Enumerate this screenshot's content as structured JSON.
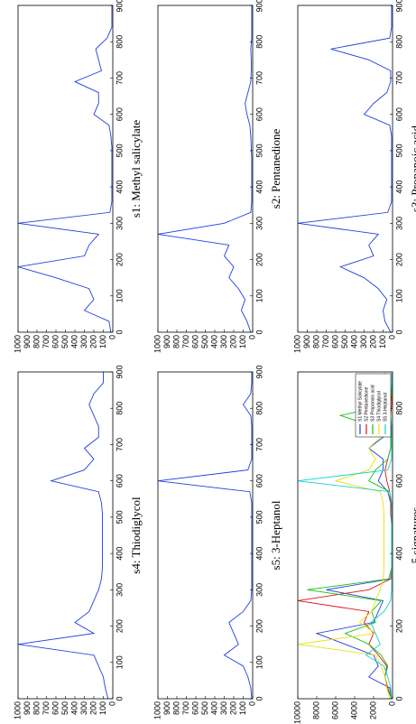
{
  "chart_data": [
    {
      "type": "line",
      "title": "s1: Methyl salicylate",
      "x": [
        0,
        30,
        60,
        90,
        120,
        150,
        180,
        210,
        240,
        270,
        300,
        330,
        360,
        390,
        420,
        450,
        480,
        510,
        540,
        570,
        600,
        630,
        660,
        690,
        720,
        750,
        780,
        810,
        840,
        870,
        900
      ],
      "series": [
        {
          "color": "#1f3fdf",
          "values": [
            20,
            40,
            300,
            200,
            250,
            600,
            1000,
            300,
            250,
            150,
            1000,
            30,
            10,
            10,
            10,
            10,
            10,
            10,
            20,
            40,
            200,
            150,
            150,
            400,
            120,
            150,
            180,
            60,
            10,
            10,
            10
          ]
        }
      ],
      "xlim": [
        0,
        900
      ],
      "xticks": [
        0,
        100,
        200,
        300,
        400,
        500,
        600,
        700,
        800,
        900
      ],
      "ylim": [
        0,
        1000
      ],
      "yticks": [
        0,
        100,
        200,
        300,
        400,
        500,
        600,
        700,
        800,
        900,
        1000
      ]
    },
    {
      "type": "line",
      "title": "s2: Pentanedione",
      "x": [
        0,
        30,
        60,
        90,
        120,
        150,
        180,
        210,
        240,
        270,
        300,
        330,
        360,
        390,
        420,
        450,
        480,
        510,
        540,
        570,
        600,
        630,
        660,
        690,
        720,
        750,
        780,
        810,
        840,
        870,
        900
      ],
      "series": [
        {
          "color": "#1f3fdf",
          "values": [
            20,
            60,
            120,
            80,
            150,
            250,
            200,
            300,
            250,
            1000,
            300,
            20,
            10,
            10,
            10,
            10,
            10,
            15,
            20,
            30,
            60,
            80,
            50,
            20,
            15,
            15,
            20,
            10,
            10,
            10,
            10
          ]
        }
      ],
      "xlim": [
        0,
        900
      ],
      "xticks": [
        0,
        100,
        200,
        300,
        400,
        500,
        600,
        700,
        800,
        900
      ],
      "ylim": [
        0,
        1000
      ],
      "yticks": [
        0,
        100,
        200,
        300,
        400,
        500,
        600,
        700,
        800,
        900,
        1000
      ]
    },
    {
      "type": "line",
      "title": "s3: Propanoic acid",
      "x": [
        0,
        30,
        60,
        90,
        120,
        150,
        180,
        210,
        240,
        270,
        300,
        330,
        360,
        390,
        420,
        450,
        480,
        510,
        540,
        570,
        600,
        630,
        660,
        690,
        720,
        750,
        780,
        810,
        840,
        870,
        900
      ],
      "series": [
        {
          "color": "#1f3fdf",
          "values": [
            20,
            80,
            100,
            60,
            150,
            300,
            550,
            200,
            250,
            150,
            1000,
            50,
            10,
            10,
            10,
            10,
            10,
            10,
            10,
            30,
            300,
            200,
            60,
            20,
            20,
            250,
            650,
            30,
            10,
            10,
            10
          ]
        }
      ],
      "xlim": [
        0,
        900
      ],
      "xticks": [
        0,
        100,
        200,
        300,
        400,
        500,
        600,
        700,
        800,
        900
      ],
      "ylim": [
        0,
        1000
      ],
      "yticks": [
        0,
        100,
        200,
        300,
        400,
        500,
        600,
        700,
        800,
        900,
        1000
      ]
    },
    {
      "type": "line",
      "title": "s4: Thiodiglycol",
      "x": [
        0,
        30,
        60,
        90,
        120,
        150,
        180,
        210,
        240,
        270,
        300,
        330,
        360,
        390,
        420,
        450,
        480,
        510,
        540,
        570,
        600,
        630,
        660,
        690,
        720,
        750,
        780,
        810,
        840,
        870,
        900
      ],
      "series": [
        {
          "color": "#1f3fdf",
          "values": [
            50,
            80,
            100,
            150,
            200,
            1000,
            200,
            400,
            250,
            200,
            150,
            120,
            110,
            110,
            110,
            110,
            110,
            110,
            120,
            150,
            650,
            300,
            200,
            300,
            150,
            150,
            200,
            250,
            200,
            100,
            100
          ]
        }
      ],
      "xlim": [
        0,
        900
      ],
      "xticks": [
        0,
        100,
        200,
        300,
        400,
        500,
        600,
        700,
        800,
        900
      ],
      "ylim": [
        0,
        1000
      ],
      "yticks": [
        0,
        100,
        200,
        300,
        400,
        500,
        600,
        700,
        800,
        900,
        1000
      ]
    },
    {
      "type": "line",
      "title": "s5: 3-Heptanol",
      "x": [
        0,
        30,
        60,
        90,
        120,
        150,
        180,
        210,
        240,
        270,
        300,
        330,
        360,
        390,
        420,
        450,
        480,
        510,
        540,
        570,
        600,
        630,
        660,
        690,
        720,
        750,
        780,
        810,
        840,
        870,
        900
      ],
      "series": [
        {
          "color": "#1f3fdf",
          "values": [
            10,
            20,
            50,
            100,
            300,
            150,
            200,
            250,
            100,
            20,
            10,
            10,
            10,
            10,
            10,
            10,
            10,
            10,
            10,
            30,
            1000,
            50,
            10,
            10,
            10,
            10,
            20,
            100,
            20,
            10,
            10
          ]
        }
      ],
      "xlim": [
        0,
        900
      ],
      "xticks": [
        0,
        100,
        200,
        300,
        400,
        500,
        600,
        700,
        800,
        900
      ],
      "ylim": [
        0,
        1000
      ],
      "yticks": [
        0,
        100,
        200,
        300,
        400,
        500,
        600,
        700,
        800,
        900,
        1000
      ]
    },
    {
      "type": "line",
      "title": "5 signatures",
      "x": [
        0,
        30,
        60,
        90,
        120,
        150,
        180,
        210,
        240,
        270,
        300,
        330,
        360,
        390,
        420,
        450,
        480,
        510,
        540,
        570,
        600,
        630,
        660,
        690,
        720,
        750,
        780,
        810,
        840,
        870,
        900
      ],
      "series": [
        {
          "name": "S1 Methyl Salicylate",
          "color": "#1f3fdf",
          "values": [
            100,
            300,
            2500,
            1500,
            2000,
            5000,
            8000,
            2000,
            1500,
            1000,
            7000,
            200,
            100,
            100,
            100,
            100,
            100,
            100,
            200,
            500,
            1500,
            1000,
            1000,
            2500,
            1000,
            1500,
            2000,
            500,
            100,
            100,
            100
          ]
        },
        {
          "name": "S2 Pentanedione",
          "color": "#e01010",
          "values": [
            100,
            500,
            800,
            600,
            1500,
            2500,
            2000,
            3000,
            2500,
            10000,
            2500,
            200,
            100,
            100,
            100,
            100,
            100,
            200,
            200,
            300,
            600,
            800,
            500,
            200,
            150,
            150,
            200,
            100,
            100,
            100,
            100
          ]
        },
        {
          "name": "S3 Propanoic acid",
          "color": "#10c010",
          "values": [
            100,
            600,
            800,
            500,
            1200,
            2500,
            5000,
            1800,
            2200,
            1200,
            9000,
            400,
            100,
            100,
            100,
            100,
            100,
            100,
            100,
            300,
            2500,
            1800,
            500,
            200,
            200,
            2000,
            5500,
            300,
            100,
            100,
            100
          ]
        },
        {
          "name": "S4 Thiodiglycol",
          "color": "#e8e010",
          "values": [
            300,
            600,
            800,
            1200,
            1800,
            10000,
            1800,
            3500,
            2200,
            1800,
            1300,
            1000,
            900,
            900,
            900,
            900,
            900,
            900,
            1000,
            1300,
            6000,
            2500,
            1800,
            2500,
            1300,
            1300,
            1800,
            2200,
            1800,
            800,
            800
          ]
        },
        {
          "name": "S5 3-Heptanol",
          "color": "#10d0d0",
          "values": [
            100,
            200,
            500,
            900,
            2800,
            1300,
            1800,
            2300,
            900,
            200,
            100,
            100,
            100,
            100,
            100,
            100,
            100,
            100,
            100,
            300,
            10000,
            500,
            100,
            100,
            100,
            100,
            200,
            900,
            200,
            100,
            100
          ]
        }
      ],
      "xlim": [
        0,
        900
      ],
      "xticks": [
        0,
        200,
        400,
        600,
        800
      ],
      "ylim": [
        0,
        10000
      ],
      "yticks": [
        0,
        2000,
        4000,
        6000,
        8000,
        10000
      ],
      "legend": "top-right"
    }
  ]
}
